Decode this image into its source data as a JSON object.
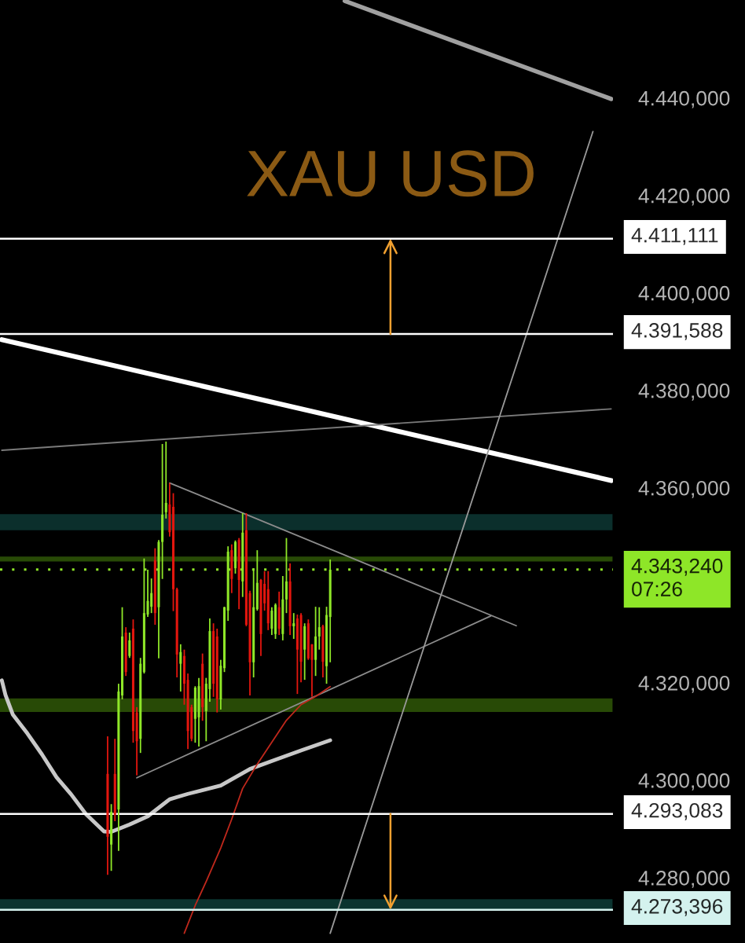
{
  "chart_data": {
    "type": "candlestick",
    "title": "XAU USD",
    "categories": [
      null,
      null,
      null,
      null,
      null,
      null,
      null,
      null,
      null,
      null,
      null,
      null,
      null,
      null,
      null,
      null,
      null,
      null,
      null,
      null,
      null,
      null,
      null,
      null,
      null,
      null,
      null,
      null,
      null,
      null,
      null,
      null,
      null,
      null,
      null,
      null,
      null,
      null,
      null,
      null,
      null,
      null,
      null,
      null,
      null,
      null,
      null,
      null,
      null,
      null,
      null,
      null,
      null,
      null,
      null,
      null,
      null,
      null,
      null,
      null,
      null,
      null,
      null,
      null,
      null,
      null,
      null,
      null,
      null,
      null,
      null,
      null,
      null,
      null,
      null,
      null,
      null,
      null,
      null,
      null,
      null,
      null,
      null,
      null,
      null,
      null,
      null,
      null,
      null,
      null,
      null,
      null,
      null,
      null,
      null,
      null,
      null,
      null,
      null,
      null,
      null,
      null,
      null,
      null,
      null,
      null,
      null,
      null,
      null,
      null,
      null,
      null,
      null,
      null,
      null,
      null,
      null,
      null,
      null,
      null,
      null,
      null,
      null,
      null,
      null,
      null,
      null,
      null,
      null,
      null,
      null,
      null,
      null,
      null,
      null,
      null,
      null,
      null,
      null,
      null,
      null,
      null,
      null,
      null,
      null,
      null,
      null,
      null,
      null,
      null,
      null,
      null,
      null,
      null,
      null,
      null,
      null,
      null,
      null,
      null,
      null,
      null,
      null,
      null,
      null,
      null,
      null,
      null
    ],
    "ohlc": [
      null,
      null,
      null,
      null,
      null,
      null,
      null,
      null,
      null,
      null,
      null,
      null,
      null,
      null,
      null,
      null,
      null,
      null,
      null,
      null,
      null,
      null,
      null,
      null,
      null,
      null,
      null,
      null,
      null,
      [
        4301.3,
        4309.0,
        4280.6,
        4288.4
      ],
      [
        4286.8,
        4295.1,
        4281.4,
        4293.5
      ],
      [
        4301.3,
        4308.5,
        4291.6,
        4292.9
      ],
      [
        4294.0,
        4319.8,
        4285.5,
        4318.2
      ],
      [
        4317.4,
        4335.5,
        4316.6,
        4329.5
      ],
      [
        4330.3,
        4331.4,
        4321.4,
        4322.2
      ],
      [
        4325.5,
        4330.3,
        4325.1,
        4328.7
      ],
      [
        4331.1,
        4333.0,
        4307.7,
        4310.1
      ],
      [
        4313.9,
        4315.0,
        4301.0,
        4308.0
      ],
      [
        4308.5,
        4325.1,
        4305.6,
        4323.9
      ],
      [
        4322.2,
        4345.5,
        4321.9,
        4334.3
      ],
      [
        4334.0,
        4343.2,
        4333.5,
        4336.8
      ],
      [
        4335.6,
        4341.4,
        4334.3,
        4338.4
      ],
      [
        4345.1,
        4347.6,
        4331.9,
        4334.3
      ],
      [
        4335.5,
        4349.3,
        4325.0,
        4348.9
      ],
      [
        4348.9,
        4369.0,
        4341.3,
        4354.5
      ],
      [
        4355.0,
        4369.5,
        4353.7,
        4356.9
      ],
      [
        4356.6,
        4361.0,
        4350.0,
        4350.9
      ],
      [
        4356.1,
        4358.9,
        4334.7,
        4339.2
      ],
      [
        4339.2,
        4339.5,
        4321.1,
        4325.8
      ],
      [
        4323.9,
        4327.9,
        4318.2,
        4326.3
      ],
      [
        4325.5,
        4326.8,
        4315.5,
        4319.8
      ],
      [
        4320.6,
        4321.9,
        4306.4,
        4310.1
      ],
      [
        4315.0,
        4315.5,
        4308.0,
        4308.5
      ],
      [
        4312.6,
        4319.3,
        4307.7,
        4319.0
      ],
      [
        4312.9,
        4321.0,
        4306.9,
        4319.3
      ],
      [
        4323.9,
        4326.0,
        4312.2,
        4315.0
      ],
      [
        4314.2,
        4321.0,
        4308.0,
        4319.8
      ],
      [
        4318.7,
        4333.2,
        4316.1,
        4330.6
      ],
      [
        4330.6,
        4332.2,
        4317.1,
        4319.8
      ],
      [
        4329.5,
        4331.1,
        4313.9,
        4316.6
      ],
      [
        4316.6,
        4324.7,
        4314.5,
        4323.5
      ],
      [
        4323.0,
        4335.6,
        4322.2,
        4335.5
      ],
      [
        4334.8,
        4348.0,
        4332.7,
        4346.9
      ],
      [
        4347.2,
        4348.4,
        4338.4,
        4341.3
      ],
      [
        4343.5,
        4349.2,
        4342.4,
        4348.9
      ],
      [
        4349.3,
        4349.7,
        4335.1,
        4341.1
      ],
      [
        4340.8,
        4354.8,
        4337.6,
        4350.8
      ],
      [
        4351.3,
        4354.8,
        4331.6,
        4331.9
      ],
      [
        4338.4,
        4338.9,
        4317.4,
        4324.2
      ],
      [
        4324.2,
        4343.5,
        4321.1,
        4335.5
      ],
      [
        4335.1,
        4347.2,
        4334.8,
        4340.5
      ],
      [
        4341.1,
        4341.3,
        4325.5,
        4330.0
      ],
      [
        4340.3,
        4342.9,
        4334.8,
        4336.3
      ],
      [
        4339.2,
        4342.9,
        4330.8,
        4332.2
      ],
      [
        4331.1,
        4335.5,
        4329.8,
        4334.8
      ],
      [
        4330.0,
        4336.3,
        4329.0,
        4336.0
      ],
      [
        4335.5,
        4338.7,
        4329.8,
        4331.1
      ],
      [
        4330.0,
        4341.9,
        4328.7,
        4337.1
      ],
      [
        4337.1,
        4349.7,
        4334.3,
        4340.8
      ],
      [
        4340.8,
        4344.5,
        4329.8,
        4331.6
      ],
      [
        4331.6,
        4334.3,
        4329.0,
        4332.2
      ],
      [
        4333.2,
        4334.0,
        4317.7,
        4326.8
      ],
      [
        4333.9,
        4334.3,
        4320.1,
        4324.3
      ],
      [
        4326.8,
        4332.2,
        4320.6,
        4331.6
      ],
      [
        4332.2,
        4333.0,
        4324.7,
        4325.0
      ],
      [
        4327.9,
        4327.9,
        4317.1,
        4324.7
      ],
      [
        4324.7,
        4335.6,
        4321.4,
        4329.5
      ],
      [
        4329.5,
        4335.5,
        4326.8,
        4331.4
      ],
      [
        4331.6,
        4331.9,
        4321.1,
        4324.3
      ],
      [
        4323.4,
        4335.6,
        4319.8,
        4333.9
      ],
      [
        4333.5,
        4345.3,
        4324.2,
        4343.2
      ],
      null,
      null,
      null,
      null,
      null,
      null,
      null,
      null,
      null,
      null,
      null,
      null,
      null,
      null,
      null,
      null,
      null,
      null,
      null,
      null,
      null,
      null,
      null,
      null,
      null,
      null,
      null,
      null,
      null,
      null,
      null,
      null,
      null,
      null,
      null,
      null,
      null,
      null,
      null,
      null,
      null,
      null,
      null,
      null,
      null,
      null,
      null,
      null,
      null,
      null,
      null,
      null,
      null,
      null,
      null,
      null,
      null,
      null,
      null,
      null,
      null,
      null,
      null,
      null,
      null,
      null,
      null,
      null,
      null,
      null,
      null,
      null,
      null,
      null,
      null,
      null,
      null
    ],
    "colors": [
      null,
      null,
      null,
      null,
      null,
      null,
      null,
      null,
      null,
      null,
      null,
      null,
      null,
      null,
      null,
      null,
      null,
      null,
      null,
      null,
      null,
      null,
      null,
      null,
      null,
      null,
      null,
      null,
      null,
      "#e3160e",
      "#8ee628",
      "#e3160e",
      "#8ee628",
      "#8ee628",
      "#e3160e",
      "#8ee628",
      "#e3160e",
      "#e3160e",
      "#8ee628",
      "#8ee628",
      "#8ee628",
      "#8ee628",
      "#e3160e",
      "#8ee628",
      "#8ee628",
      "#8ee628",
      "#e3160e",
      "#e3160e",
      "#e3160e",
      "#8ee628",
      "#e3160e",
      "#e3160e",
      "#e3160e",
      "#8ee628",
      "#8ee628",
      "#e3160e",
      "#8ee628",
      "#8ee628",
      "#e3160e",
      "#e3160e",
      "#8ee628",
      "#8ee628",
      "#8ee628",
      "#e3160e",
      "#8ee628",
      "#e3160e",
      "#8ee628",
      "#e3160e",
      "#e3160e",
      "#8ee628",
      "#8ee628",
      "#e3160e",
      "#e3160e",
      "#e3160e",
      "#8ee628",
      "#8ee628",
      "#e3160e",
      "#8ee628",
      "#8ee628",
      "#e3160e",
      "#8ee628",
      "#e3160e",
      "#e3160e",
      "#8ee628",
      "#e3160e",
      "#e3160e",
      "#8ee628",
      "#8ee628",
      "#e3160e",
      "#8ee628",
      "#8ee628",
      null,
      null,
      null,
      null,
      null,
      null,
      null,
      null,
      null,
      null,
      null,
      null,
      null,
      null,
      null,
      null,
      null,
      null,
      null,
      null,
      null,
      null,
      null,
      null,
      null,
      null,
      null,
      null,
      null,
      null,
      null,
      null,
      null,
      null,
      null,
      null,
      null,
      null,
      null,
      null,
      null,
      null,
      null,
      null,
      null,
      null,
      null,
      null,
      null,
      null,
      null,
      null,
      null,
      null,
      null,
      null,
      null,
      null,
      null,
      null,
      null,
      null,
      null,
      null,
      null,
      null,
      null,
      null,
      null,
      null,
      null,
      null,
      null,
      null,
      null,
      null,
      null
    ],
    "series": [
      {
        "type": "line",
        "color": "#ffffff",
        "values": [
          4390.4,
          null,
          null,
          null,
          null,
          null,
          null,
          null,
          null,
          null,
          null,
          null,
          null,
          null,
          null,
          null,
          null,
          null,
          null,
          null,
          null,
          null,
          null,
          null,
          null,
          null,
          null,
          null,
          null,
          null,
          null,
          null,
          null,
          null,
          null,
          null,
          null,
          null,
          null,
          null,
          null,
          null,
          null,
          null,
          null,
          null,
          null,
          null,
          null,
          null,
          null,
          null,
          null,
          null,
          null,
          null,
          null,
          null,
          null,
          null,
          null,
          null,
          null,
          null,
          null,
          null,
          null,
          null,
          null,
          null,
          null,
          null,
          null,
          null,
          null,
          null,
          null,
          null,
          null,
          null,
          null,
          null,
          null,
          null,
          null,
          null,
          null,
          null,
          null,
          null,
          null,
          null,
          null,
          null,
          null,
          null,
          null,
          null,
          null,
          null,
          null,
          null,
          null,
          null,
          null,
          null,
          null,
          null,
          null,
          null,
          null,
          null,
          null,
          null,
          null,
          null,
          null,
          null,
          null,
          null,
          null,
          null,
          null,
          null,
          null,
          null,
          null,
          null,
          null,
          null,
          null,
          null,
          null,
          null,
          null,
          null,
          null,
          null,
          null,
          null,
          null,
          null,
          null,
          null,
          null,
          null,
          null,
          null,
          null,
          null,
          null,
          null,
          null,
          null,
          null,
          null,
          null,
          null,
          null,
          null,
          null,
          null,
          null,
          null,
          null,
          null,
          null,
          4361.5
        ]
      },
      {
        "type": "line",
        "color": "#a0a0a0",
        "values": [
          null,
          null,
          null,
          null,
          null,
          null,
          null,
          null,
          null,
          null,
          null,
          null,
          null,
          null,
          null,
          null,
          null,
          null,
          null,
          null,
          null,
          null,
          null,
          null,
          null,
          null,
          null,
          null,
          null,
          null,
          null,
          null,
          null,
          null,
          null,
          null,
          null,
          null,
          null,
          null,
          null,
          null,
          null,
          null,
          null,
          null,
          null,
          null,
          null,
          null,
          null,
          null,
          null,
          null,
          null,
          null,
          null,
          null,
          null,
          null,
          null,
          null,
          null,
          null,
          null,
          null,
          null,
          null,
          null,
          null,
          null,
          null,
          null,
          null,
          null,
          null,
          null,
          null,
          null,
          null,
          null,
          null,
          null,
          null,
          null,
          null,
          null,
          null,
          null,
          null,
          null,
          null,
          null,
          null,
          4459.9,
          null,
          null,
          null,
          null,
          null,
          null,
          null,
          null,
          null,
          null,
          null,
          null,
          null,
          null,
          null,
          null,
          null,
          null,
          null,
          null,
          null,
          null,
          null,
          null,
          null,
          null,
          null,
          null,
          null,
          null,
          null,
          null,
          null,
          null,
          null,
          null,
          null,
          null,
          null,
          null,
          null,
          null,
          null,
          null,
          null,
          null,
          null,
          null,
          null,
          null,
          null,
          null,
          null,
          null,
          null,
          null,
          null,
          null,
          null,
          null,
          null,
          null,
          null,
          null,
          null,
          null,
          null,
          null,
          null,
          null,
          null,
          null,
          4439.8
        ]
      },
      {
        "type": "line",
        "color": "#7a7a7a",
        "values": [
          4367.7,
          null,
          null,
          null,
          null,
          null,
          null,
          null,
          null,
          null,
          null,
          null,
          null,
          null,
          null,
          null,
          null,
          null,
          null,
          null,
          null,
          null,
          null,
          null,
          null,
          null,
          null,
          null,
          null,
          null,
          null,
          null,
          null,
          null,
          null,
          null,
          null,
          null,
          null,
          null,
          null,
          null,
          null,
          null,
          null,
          null,
          null,
          null,
          null,
          null,
          null,
          null,
          null,
          null,
          null,
          null,
          null,
          null,
          null,
          null,
          null,
          null,
          null,
          null,
          null,
          null,
          null,
          null,
          null,
          null,
          null,
          null,
          null,
          null,
          null,
          null,
          null,
          null,
          null,
          null,
          null,
          null,
          null,
          null,
          null,
          null,
          null,
          null,
          null,
          null,
          null,
          null,
          null,
          null,
          null,
          null,
          null,
          null,
          null,
          null,
          null,
          null,
          null,
          null,
          null,
          null,
          null,
          null,
          null,
          null,
          null,
          null,
          null,
          null,
          null,
          null,
          null,
          null,
          null,
          null,
          null,
          null,
          null,
          null,
          null,
          null,
          null,
          null,
          null,
          null,
          null,
          null,
          null,
          null,
          null,
          null,
          null,
          null,
          null,
          null,
          null,
          null,
          null,
          null,
          null,
          null,
          null,
          null,
          null,
          null,
          null,
          null,
          null,
          null,
          null,
          null,
          null,
          null,
          null,
          null,
          null,
          null,
          null,
          null,
          null,
          null,
          null,
          4376.2
        ]
      },
      {
        "type": "line",
        "color": "#8c8c8c",
        "values": [
          null,
          null,
          null,
          null,
          null,
          null,
          null,
          null,
          null,
          null,
          null,
          null,
          null,
          null,
          null,
          null,
          null,
          null,
          null,
          null,
          null,
          null,
          null,
          null,
          null,
          null,
          null,
          null,
          null,
          null,
          null,
          null,
          null,
          null,
          null,
          null,
          null,
          null,
          null,
          null,
          null,
          null,
          null,
          null,
          null,
          null,
          4361.0,
          null,
          null,
          null,
          null,
          null,
          null,
          null,
          null,
          null,
          null,
          null,
          null,
          null,
          null,
          null,
          null,
          null,
          null,
          null,
          null,
          null,
          null,
          null,
          null,
          null,
          null,
          null,
          null,
          null,
          null,
          null,
          null,
          null,
          null,
          null,
          null,
          null,
          null,
          null,
          null,
          null,
          null,
          null,
          null,
          null,
          null,
          null,
          null,
          null,
          null,
          null,
          null,
          null,
          null,
          null,
          null,
          null,
          null,
          null,
          null,
          null,
          null,
          null,
          null,
          null,
          null,
          null,
          null,
          null,
          null,
          null,
          null,
          null,
          null,
          null,
          null,
          null,
          null,
          null,
          null,
          null,
          null,
          null,
          null,
          null,
          null,
          null,
          null,
          null,
          null,
          null,
          null,
          null,
          null,
          4331.7,
          null,
          null,
          null,
          null,
          null,
          null,
          null,
          null,
          null,
          null,
          null,
          null,
          null,
          null,
          null,
          null,
          null,
          null,
          null,
          null,
          null,
          null,
          null,
          null,
          null,
          null
        ]
      },
      {
        "type": "line",
        "color": "#8c8c8c",
        "values": [
          null,
          null,
          null,
          null,
          null,
          null,
          null,
          null,
          null,
          null,
          null,
          null,
          null,
          null,
          null,
          null,
          null,
          null,
          null,
          null,
          null,
          null,
          null,
          null,
          null,
          null,
          null,
          null,
          null,
          null,
          null,
          null,
          null,
          null,
          null,
          null,
          null,
          4300.5,
          null,
          null,
          null,
          null,
          null,
          null,
          null,
          null,
          null,
          null,
          null,
          null,
          null,
          null,
          null,
          null,
          null,
          null,
          null,
          null,
          null,
          null,
          null,
          null,
          null,
          null,
          null,
          null,
          null,
          null,
          null,
          null,
          null,
          null,
          null,
          null,
          null,
          null,
          null,
          null,
          null,
          null,
          null,
          null,
          null,
          null,
          null,
          null,
          null,
          null,
          null,
          null,
          null,
          null,
          null,
          null,
          null,
          null,
          null,
          null,
          null,
          null,
          null,
          null,
          null,
          null,
          null,
          null,
          null,
          null,
          null,
          null,
          null,
          null,
          null,
          null,
          null,
          null,
          null,
          null,
          null,
          null,
          null,
          null,
          null,
          null,
          null,
          null,
          null,
          null,
          null,
          null,
          null,
          null,
          null,
          null,
          4333.7,
          null,
          null,
          null,
          null,
          null,
          null,
          null,
          null,
          null,
          null,
          null,
          null,
          null,
          null,
          null,
          null,
          null,
          null,
          null,
          null,
          null,
          null,
          null,
          null,
          null,
          null,
          null,
          null,
          null,
          null,
          null,
          null,
          null
        ]
      },
      {
        "type": "line",
        "color": "#9a9a9a",
        "values": [
          null,
          null,
          null,
          null,
          null,
          null,
          null,
          null,
          null,
          null,
          null,
          null,
          null,
          null,
          null,
          null,
          null,
          null,
          null,
          null,
          null,
          null,
          null,
          null,
          null,
          null,
          null,
          null,
          null,
          null,
          null,
          null,
          null,
          null,
          null,
          null,
          null,
          null,
          null,
          null,
          null,
          null,
          null,
          null,
          null,
          null,
          null,
          null,
          null,
          null,
          null,
          null,
          null,
          null,
          null,
          null,
          null,
          null,
          null,
          null,
          null,
          null,
          null,
          null,
          null,
          null,
          null,
          null,
          null,
          null,
          null,
          null,
          null,
          null,
          null,
          null,
          null,
          null,
          null,
          null,
          null,
          null,
          null,
          null,
          null,
          null,
          null,
          null,
          null,
          null,
          4268.6,
          null,
          null,
          null,
          null,
          null,
          null,
          null,
          null,
          null,
          null,
          null,
          null,
          null,
          null,
          null,
          null,
          null,
          null,
          null,
          null,
          null,
          null,
          null,
          null,
          null,
          null,
          null,
          null,
          null,
          null,
          null,
          null,
          null,
          null,
          null,
          null,
          null,
          null,
          null,
          null,
          null,
          null,
          null,
          null,
          null,
          null,
          null,
          null,
          null,
          null,
          null,
          null,
          null,
          null,
          null,
          null,
          null,
          null,
          null,
          null,
          null,
          null,
          null,
          null,
          null,
          null,
          null,
          null,
          null,
          null,
          null,
          4433.1,
          null,
          null,
          null,
          null,
          null
        ]
      },
      {
        "type": "line",
        "color": "#c8c8c8",
        "values": [
          4320.5,
          4317.5,
          null,
          4313.5,
          null,
          null,
          null,
          4309.6,
          null,
          null,
          null,
          4305.3,
          null,
          null,
          null,
          4300.6,
          null,
          null,
          null,
          4297.1,
          null,
          null,
          null,
          4293.1,
          null,
          null,
          null,
          null,
          4289.5,
          null,
          4289.4,
          null,
          null,
          null,
          null,
          4290.9,
          null,
          null,
          null,
          null,
          4292.6,
          null,
          null,
          null,
          null,
          null,
          4296.1,
          null,
          null,
          null,
          null,
          4297.2,
          null,
          null,
          null,
          null,
          null,
          null,
          null,
          null,
          4298.9,
          null,
          null,
          null,
          null,
          null,
          null,
          null,
          4302.3,
          null,
          null,
          null,
          null,
          null,
          null,
          4304.2,
          null,
          null,
          null,
          null,
          null,
          null,
          4306.1,
          null,
          null,
          null,
          null,
          null,
          null,
          null,
          4308.2,
          null,
          null,
          null,
          null,
          null,
          null,
          null,
          null,
          null,
          null,
          null,
          null,
          null,
          null,
          null,
          null,
          null,
          null,
          null,
          null,
          null,
          null,
          null,
          null,
          null,
          null,
          null,
          null,
          null,
          null,
          null,
          null,
          null,
          null,
          null,
          null,
          null,
          null,
          null,
          null,
          null,
          null,
          null,
          null,
          null,
          null,
          null,
          null,
          null,
          null,
          null,
          null,
          null,
          null,
          null,
          null,
          null,
          null,
          null,
          null,
          null,
          null,
          null,
          null,
          null,
          null,
          null,
          null,
          null,
          null,
          null,
          null,
          null,
          null,
          null,
          null,
          null
        ]
      },
      {
        "type": "line",
        "color": "#c0281c",
        "values": [
          null,
          null,
          null,
          null,
          null,
          null,
          null,
          null,
          null,
          null,
          null,
          null,
          null,
          null,
          null,
          null,
          null,
          null,
          null,
          null,
          null,
          null,
          null,
          null,
          null,
          null,
          null,
          null,
          null,
          null,
          null,
          null,
          null,
          null,
          null,
          null,
          null,
          null,
          null,
          null,
          null,
          null,
          null,
          null,
          null,
          null,
          null,
          null,
          null,
          null,
          4268.6,
          null,
          null,
          4274.3,
          null,
          null,
          4279.2,
          null,
          null,
          null,
          4286.1,
          null,
          null,
          4292.0,
          null,
          null,
          4298.3,
          null,
          null,
          null,
          4303.3,
          null,
          null,
          null,
          4307.8,
          null,
          null,
          null,
          4312.3,
          null,
          null,
          null,
          4315.5,
          null,
          null,
          null,
          4317.2,
          null,
          null,
          null,
          4319.2,
          null,
          null,
          null,
          null,
          null,
          null,
          null,
          null,
          null,
          null,
          null,
          null,
          null,
          null,
          null,
          null,
          null,
          null,
          null,
          null,
          null,
          null,
          null,
          null,
          null,
          null,
          null,
          null,
          null,
          null,
          null,
          null,
          null,
          null,
          null,
          null,
          null,
          null,
          null,
          null,
          null,
          null,
          null,
          null,
          null,
          null,
          null,
          null,
          null,
          null,
          null,
          null,
          null,
          null,
          null,
          null,
          null,
          null,
          null,
          null,
          null,
          null,
          null,
          null,
          null,
          null,
          null,
          null,
          null,
          null,
          null,
          null,
          null,
          null,
          null,
          null,
          null
        ]
      }
    ],
    "ylim": [
      4266.6,
      4460.1
    ],
    "yticks": [
      {
        "value": 4440,
        "label": "4.440,000"
      },
      {
        "value": 4420,
        "label": "4.420,000"
      },
      {
        "value": 4400,
        "label": "4.400,000"
      },
      {
        "value": 4380,
        "label": "4.380,000"
      },
      {
        "value": 4360,
        "label": "4.360,000"
      },
      {
        "value": 4320,
        "label": "4.320,000"
      },
      {
        "value": 4300,
        "label": "4.300,000"
      },
      {
        "value": 4280,
        "label": "4.280,000"
      }
    ],
    "tick_labels": "y",
    "bands": [
      {
        "axis": "y",
        "from": 4351.3,
        "to": 4354.6,
        "color": "#0b2f2c"
      },
      {
        "axis": "y",
        "from": 4344.9,
        "to": 4345.9,
        "color": "#284a06"
      },
      {
        "axis": "y",
        "from": 4314.0,
        "to": 4316.8,
        "color": "#284a06"
      },
      {
        "axis": "y",
        "from": 4273.4,
        "to": 4275.6,
        "color": "#0b3430"
      }
    ],
    "ref_lines": [
      {
        "axis": "y",
        "value": 4411.111,
        "label": "4.411,111",
        "color": "#ffffff"
      },
      {
        "axis": "y",
        "value": 4391.588,
        "label": "4.391,588",
        "color": "#ffffff"
      },
      {
        "axis": "y",
        "value": 4293.083,
        "label": "4.293,083",
        "color": "#ffffff"
      },
      {
        "axis": "y",
        "value": 4273.396,
        "label": "4.273,396",
        "color": "#d4f2ee"
      },
      {
        "axis": "y",
        "value": 4343.24,
        "label": "4.343,240\n07:26",
        "color": "#8ee628",
        "line_style": "dotted"
      }
    ]
  }
}
